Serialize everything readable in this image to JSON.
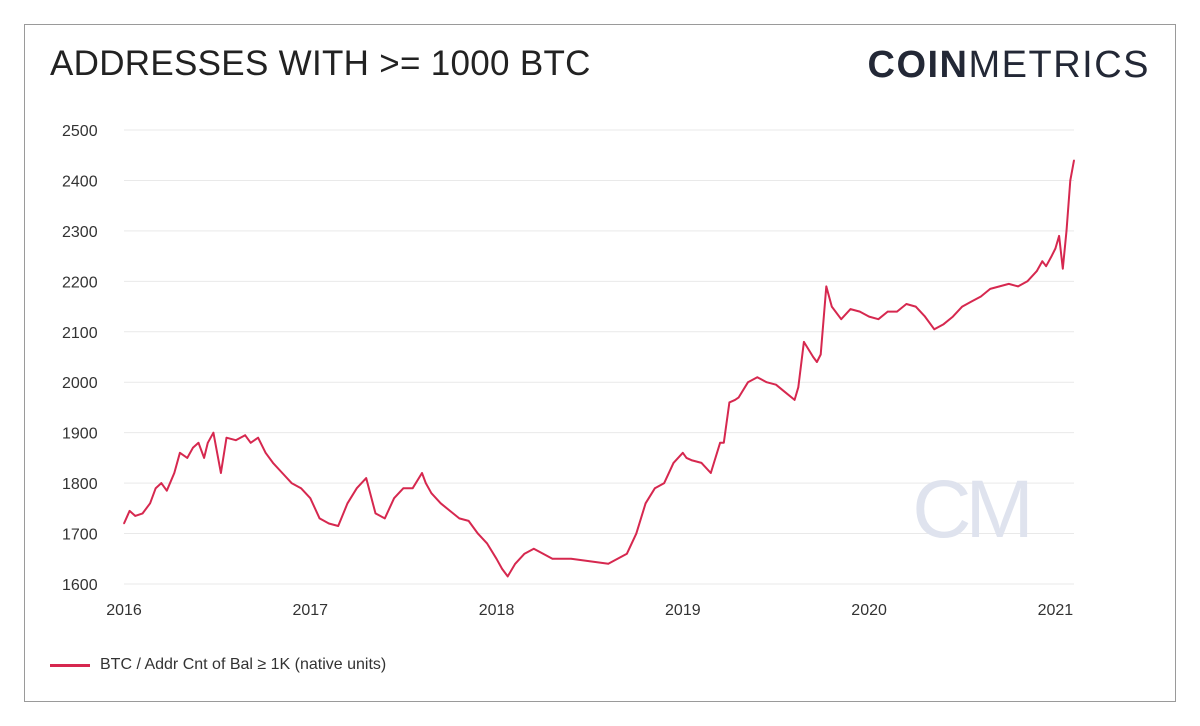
{
  "title": "ADDRESSES WITH >= 1000 BTC",
  "brand": {
    "bold": "COIN",
    "light": "METRICS"
  },
  "watermark": "CM",
  "legend": {
    "label": "BTC / Addr Cnt of Bal ≥ 1K (native units)",
    "color": "#d6284f"
  },
  "colors": {
    "line": "#d6284f",
    "grid": "#e9e9e9",
    "watermark": "#dfe3ee"
  },
  "chart_data": {
    "type": "line",
    "title": "ADDRESSES WITH >= 1000 BTC",
    "xlabel": "",
    "ylabel": "",
    "xlim": [
      2016.0,
      2021.1
    ],
    "ylim": [
      1600,
      2500
    ],
    "yticks": [
      1600,
      1700,
      1800,
      1900,
      2000,
      2100,
      2200,
      2300,
      2400,
      2500
    ],
    "xticks": [
      {
        "value": 2016,
        "label": "2016"
      },
      {
        "value": 2017,
        "label": "2017"
      },
      {
        "value": 2018,
        "label": "2018"
      },
      {
        "value": 2019,
        "label": "2019"
      },
      {
        "value": 2020,
        "label": "2020"
      },
      {
        "value": 2021,
        "label": "2021"
      }
    ],
    "grid": true,
    "legend_position": "bottom-left",
    "series": [
      {
        "name": "BTC / Addr Cnt of Bal ≥ 1K (native units)",
        "x": [
          2016.0,
          2016.03,
          2016.06,
          2016.1,
          2016.14,
          2016.17,
          2016.2,
          2016.23,
          2016.27,
          2016.3,
          2016.34,
          2016.37,
          2016.4,
          2016.43,
          2016.45,
          2016.48,
          2016.52,
          2016.55,
          2016.6,
          2016.65,
          2016.68,
          2016.72,
          2016.76,
          2016.8,
          2016.85,
          2016.9,
          2016.95,
          2017.0,
          2017.05,
          2017.1,
          2017.15,
          2017.2,
          2017.25,
          2017.3,
          2017.35,
          2017.4,
          2017.45,
          2017.5,
          2017.55,
          2017.6,
          2017.62,
          2017.65,
          2017.7,
          2017.75,
          2017.8,
          2017.85,
          2017.9,
          2017.95,
          2018.0,
          2018.03,
          2018.06,
          2018.1,
          2018.15,
          2018.2,
          2018.25,
          2018.3,
          2018.4,
          2018.5,
          2018.6,
          2018.65,
          2018.7,
          2018.75,
          2018.8,
          2018.85,
          2018.9,
          2018.95,
          2019.0,
          2019.02,
          2019.05,
          2019.1,
          2019.15,
          2019.2,
          2019.22,
          2019.25,
          2019.28,
          2019.3,
          2019.35,
          2019.4,
          2019.45,
          2019.5,
          2019.55,
          2019.6,
          2019.62,
          2019.65,
          2019.7,
          2019.72,
          2019.74,
          2019.77,
          2019.8,
          2019.85,
          2019.9,
          2019.95,
          2020.0,
          2020.05,
          2020.1,
          2020.15,
          2020.2,
          2020.25,
          2020.3,
          2020.35,
          2020.4,
          2020.45,
          2020.5,
          2020.55,
          2020.6,
          2020.65,
          2020.7,
          2020.75,
          2020.8,
          2020.85,
          2020.9,
          2020.93,
          2020.95,
          2020.98,
          2021.0,
          2021.02,
          2021.04,
          2021.06,
          2021.08,
          2021.1
        ],
        "values": [
          1720,
          1745,
          1735,
          1740,
          1760,
          1790,
          1800,
          1785,
          1820,
          1860,
          1850,
          1870,
          1880,
          1850,
          1880,
          1900,
          1820,
          1890,
          1885,
          1895,
          1880,
          1890,
          1860,
          1840,
          1820,
          1800,
          1790,
          1770,
          1730,
          1720,
          1715,
          1760,
          1790,
          1810,
          1740,
          1730,
          1770,
          1790,
          1790,
          1820,
          1800,
          1780,
          1760,
          1745,
          1730,
          1725,
          1700,
          1680,
          1650,
          1630,
          1615,
          1640,
          1660,
          1670,
          1660,
          1650,
          1650,
          1645,
          1640,
          1650,
          1660,
          1700,
          1760,
          1790,
          1800,
          1840,
          1860,
          1850,
          1845,
          1840,
          1820,
          1880,
          1880,
          1960,
          1965,
          1970,
          2000,
          2010,
          2000,
          1995,
          1980,
          1965,
          1990,
          2080,
          2050,
          2040,
          2055,
          2190,
          2150,
          2125,
          2145,
          2140,
          2130,
          2125,
          2140,
          2140,
          2155,
          2150,
          2130,
          2105,
          2115,
          2130,
          2150,
          2160,
          2170,
          2185,
          2190,
          2195,
          2190,
          2200,
          2220,
          2240,
          2230,
          2250,
          2265,
          2290,
          2225,
          2300,
          2400,
          2440
        ]
      }
    ]
  }
}
